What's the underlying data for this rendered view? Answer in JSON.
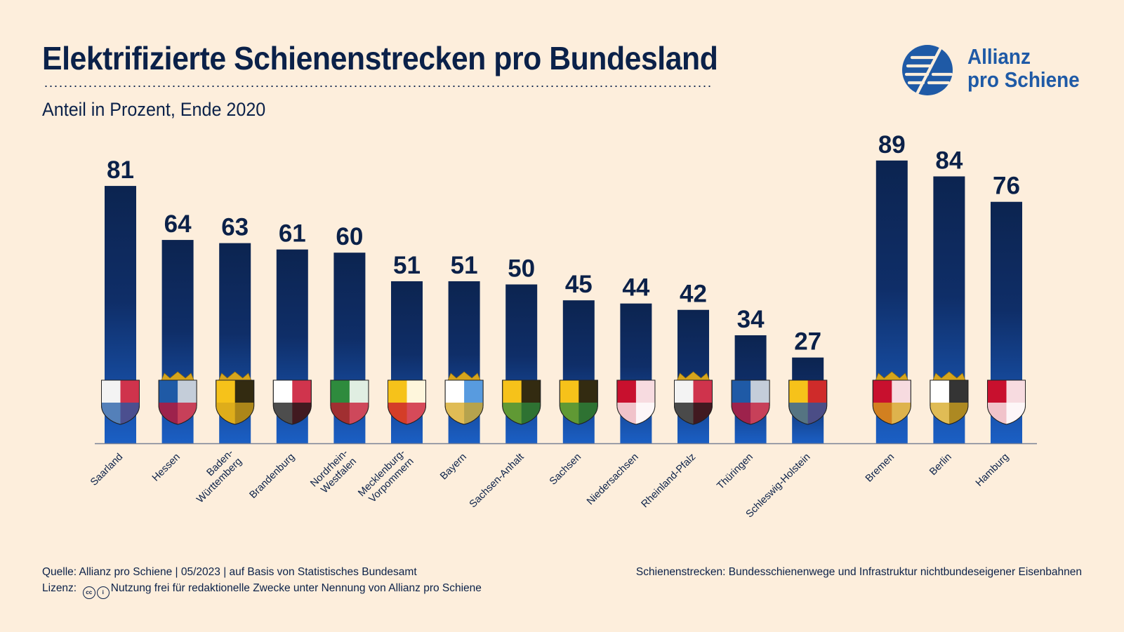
{
  "title": "Elektrifizierte Schienenstrecken pro Bundesland",
  "subtitle": "Anteil in Prozent, Ende 2020",
  "logo": {
    "line1": "Allianz",
    "line2": "pro Schiene",
    "icon": "allianz-pro-schiene-logo"
  },
  "footer": {
    "source": "Quelle: Allianz pro Schiene | 05/2023 | auf Basis von Statistisches Bundesamt",
    "license_label": "Lizenz:",
    "license_icons": [
      "cc-icon",
      "by-icon"
    ],
    "license_text": "Nutzung frei für redaktionelle Zwecke unter Nennung von Allianz pro Schiene",
    "note": "Schienenstrecken: Bundesschienenwege und Infrastruktur nichtbundeseigener Eisenbahnen"
  },
  "colors": {
    "background": "#fdeedc",
    "text": "#0b2149",
    "bar_top": "#0c2450",
    "bar_bottom": "#1b5fc4",
    "logo": "#1f5aa6"
  },
  "chart_data": {
    "type": "bar",
    "title": "Elektrifizierte Schienenstrecken pro Bundesland",
    "subtitle": "Anteil in Prozent, Ende 2020",
    "ylim": [
      0,
      100
    ],
    "grid": false,
    "groups": [
      {
        "categories": [
          "Saarland",
          "Hessen",
          "Baden-Württemberg",
          "Brandenburg",
          "Nordrhein-Westfalen",
          "Mecklenburg-Vorpommern",
          "Bayern",
          "Sachsen-Anhalt",
          "Sachsen",
          "Niedersachsen",
          "Rheinland-Pfalz",
          "Thüringen",
          "Schleswig-Holstein"
        ],
        "values": [
          81,
          64,
          63,
          61,
          60,
          51,
          51,
          50,
          45,
          44,
          42,
          34,
          27
        ]
      },
      {
        "categories": [
          "Bremen",
          "Berlin",
          "Hamburg"
        ],
        "values": [
          89,
          84,
          76
        ]
      }
    ],
    "category_labels": [
      [
        "Saarland"
      ],
      [
        "Hessen"
      ],
      [
        "Baden-",
        "Württemberg"
      ],
      [
        "Brandenburg"
      ],
      [
        "Nordrhein-",
        "Westfalen"
      ],
      [
        "Mecklenburg-",
        "Vorpommern"
      ],
      [
        "Bayern"
      ],
      [
        "Sachsen-Anhalt"
      ],
      [
        "Sachsen"
      ],
      [
        "Niedersachsen"
      ],
      [
        "Rheinland-Pfalz"
      ],
      [
        "Thüringen"
      ],
      [
        "Schleswig-Holstein"
      ],
      [
        "Bremen"
      ],
      [
        "Berlin"
      ],
      [
        "Hamburg"
      ]
    ],
    "coat_of_arms_icons": [
      "saarland-coat-of-arms-icon",
      "hessen-coat-of-arms-icon",
      "baden-wuerttemberg-coat-of-arms-icon",
      "brandenburg-coat-of-arms-icon",
      "nordrhein-westfalen-coat-of-arms-icon",
      "mecklenburg-vorpommern-coat-of-arms-icon",
      "bayern-coat-of-arms-icon",
      "sachsen-anhalt-coat-of-arms-icon",
      "sachsen-coat-of-arms-icon",
      "niedersachsen-coat-of-arms-icon",
      "rheinland-pfalz-coat-of-arms-icon",
      "thueringen-coat-of-arms-icon",
      "schleswig-holstein-coat-of-arms-icon",
      "bremen-coat-of-arms-icon",
      "berlin-coat-of-arms-icon",
      "hamburg-coat-of-arms-icon"
    ]
  }
}
